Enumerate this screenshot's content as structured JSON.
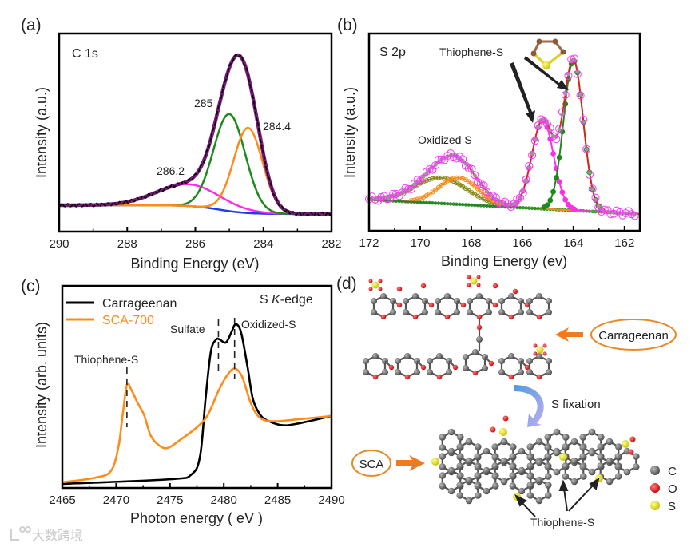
{
  "figure": {
    "panel_tags": [
      "(a)",
      "(b)",
      "(c)",
      "(d)"
    ],
    "watermark": "大数跨境"
  },
  "chart_data": [
    {
      "id": "a",
      "type": "line",
      "title": "C 1s",
      "xlabel": "Binding Energy (eV)",
      "ylabel": "Intensity (a.u.)",
      "xlim": [
        290,
        282
      ],
      "ylim": [
        0,
        100
      ],
      "xticks": [
        "290",
        "288",
        "286",
        "284",
        "282"
      ],
      "background": {
        "left": 13.3,
        "right": 8.9,
        "center": 285.3,
        "width": 0.4,
        "color": "#1f3fe0"
      },
      "peaks": [
        {
          "label": "286.2",
          "center": 286.2,
          "fwhm": 2.2,
          "height": 11,
          "color": "#ff2fe6"
        },
        {
          "label": "285",
          "center": 285.0,
          "fwhm": 1.1,
          "height": 49,
          "color": "#1e8a1e"
        },
        {
          "label": "284.4",
          "center": 284.45,
          "fwhm": 1.0,
          "height": 43,
          "color": "#ff8c1a"
        }
      ],
      "envelope_color": "#7a1a7a",
      "raw_color": "#000000"
    },
    {
      "id": "b",
      "type": "scatter",
      "title": "S 2p",
      "xlabel": "Binding Energy (ev)",
      "ylabel": "Intensity (a.u.)",
      "xlim": [
        172,
        161.4
      ],
      "ylim": [
        0,
        100
      ],
      "xticks": [
        "172",
        "170",
        "168",
        "166",
        "164",
        "162"
      ],
      "background": {
        "left": 15.8,
        "right": 8.5,
        "color": "#1e8a1e"
      },
      "peaks": [
        {
          "label": "Oxidized S (olive)",
          "center": 169.2,
          "fwhm": 2.4,
          "height": 13,
          "color": "#8a8a1a"
        },
        {
          "label": "Oxidized S (orange)",
          "center": 168.5,
          "fwhm": 1.8,
          "height": 13.5,
          "color": "#ff8c1a"
        },
        {
          "label": "Thiophene-S 2p1/2",
          "center": 165.2,
          "fwhm": 1.0,
          "height": 45,
          "color": "#ff2fe6"
        },
        {
          "label": "Thiophene-S 2p3/2",
          "center": 164.0,
          "fwhm": 0.9,
          "height": 76,
          "color": "#1e8a1e"
        }
      ],
      "annotations": [
        "Thiophene-S",
        "Oxidized S"
      ]
    },
    {
      "id": "c",
      "type": "line",
      "title": "S K-edge",
      "title_parts": [
        "S ",
        "K",
        "-edge"
      ],
      "xlabel": "Photon energy ( eV )",
      "ylabel": "Intensity (arb. units)",
      "xlim": [
        2465,
        2490
      ],
      "ylim": [
        0,
        100
      ],
      "xticks": [
        "2465",
        "2470",
        "2475",
        "2480",
        "2485",
        "2490"
      ],
      "legend": "top-left",
      "series": [
        {
          "name": "Carrageenan",
          "color": "#000000",
          "x": [
            2465,
            2475,
            2477,
            2477.8,
            2478.3,
            2478.8,
            2479.3,
            2479.6,
            2480.2,
            2480.7,
            2481.1,
            2481.6,
            2482.2,
            2482.7,
            2483.4,
            2484.2,
            2485.5,
            2487,
            2490
          ],
          "y": [
            2,
            4.3,
            6.7,
            16,
            44,
            67.6,
            73.5,
            73.5,
            72,
            77,
            81,
            77,
            60,
            44,
            36,
            33,
            31,
            32,
            35.6
          ]
        },
        {
          "name": "SCA-700",
          "color": "#ff8c1a",
          "x": [
            2465,
            2468,
            2469.5,
            2470.2,
            2470.6,
            2471.0,
            2471.4,
            2472.0,
            2472.6,
            2473.2,
            2474,
            2474.8,
            2476,
            2477.5,
            2478.5,
            2479.5,
            2480.3,
            2481,
            2481.7,
            2482.5,
            2483.3,
            2484.5,
            2487,
            2490
          ],
          "y": [
            2.8,
            5,
            8.3,
            20,
            36,
            51,
            48.6,
            42,
            36,
            26,
            21,
            19.8,
            24,
            30,
            36,
            48,
            55.7,
            59,
            55,
            42,
            35,
            33,
            34,
            35.6
          ]
        }
      ],
      "markers": [
        {
          "label": "Thiophene-S",
          "x": 2471.0
        },
        {
          "label": "Sulfate",
          "x": 2479.5
        },
        {
          "label": "Oxidized-S",
          "x": 2481.0
        }
      ]
    }
  ],
  "diagram": {
    "carrageenan_label": "Carrageenan",
    "sca_label": "SCA",
    "process_label": "S fixation",
    "thiophene_label": "Thiophene-S",
    "legend": [
      {
        "label": "C",
        "color": "#6e6e6e"
      },
      {
        "label": "O",
        "color": "#e02020"
      },
      {
        "label": "S",
        "color": "#e8e020"
      }
    ]
  }
}
